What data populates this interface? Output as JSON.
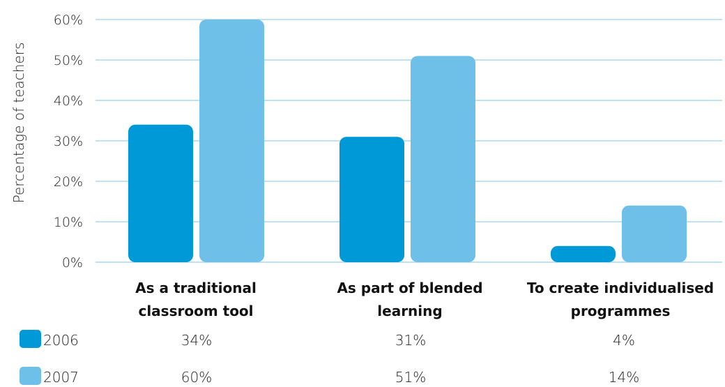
{
  "chart_data": {
    "type": "bar",
    "ylabel": "Percentage of teachers",
    "ylim": [
      0,
      60
    ],
    "yticks": [
      "0%",
      "10%",
      "20%",
      "30%",
      "40%",
      "50%",
      "60%"
    ],
    "ytick_values": [
      0,
      10,
      20,
      30,
      40,
      50,
      60
    ],
    "grid": true,
    "categories": [
      [
        "As a traditional",
        "classroom tool"
      ],
      [
        "As part of blended",
        "learning"
      ],
      [
        "To create individualised",
        "programmes"
      ]
    ],
    "series": [
      {
        "name": "2006",
        "values": [
          34,
          31,
          4
        ],
        "labels": [
          "34%",
          "31%",
          "4%"
        ],
        "color": "#0099d8"
      },
      {
        "name": "2007",
        "values": [
          60,
          51,
          14
        ],
        "labels": [
          "60%",
          "51%",
          "14%"
        ],
        "color": "#6ec0e8"
      }
    ],
    "grid_color": "#bfe2f3"
  }
}
